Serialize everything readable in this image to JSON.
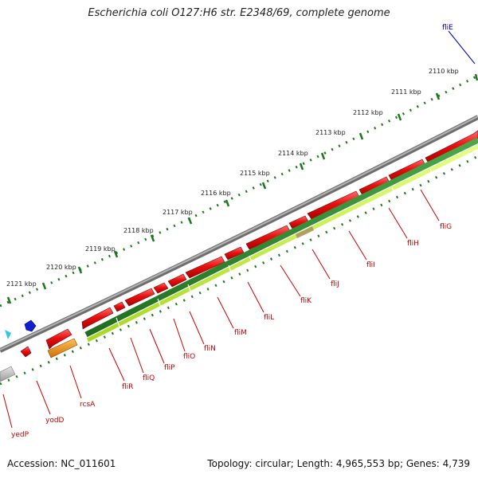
{
  "header": {
    "title": "Escherichia coli O127:H6 str. E2348/69, complete genome"
  },
  "footer": {
    "accession": "Accession: NC_011601",
    "topology": "Topology: circular; Length: 4,965,553 bp; Genes: 4,739"
  },
  "colors": {
    "background": "#ffffff",
    "backbone": "#8a8a8a",
    "gene_red": "#e81010",
    "gene_red_dark": "#a80000",
    "green_track": "#2e8b2e",
    "green_light": "#c8f040",
    "tick_green": "#1a7a1a",
    "label_red": "#cc0000",
    "label_blue": "#0000cc",
    "orange": "#f08c00",
    "gray_feature": "#c0c0c0",
    "blue_marker": "#1020d0",
    "cyan_marker": "#30c8e0"
  },
  "scale": {
    "ticks": [
      {
        "label": "2110 kbp"
      },
      {
        "label": "2111 kbp"
      },
      {
        "label": "2112 kbp"
      },
      {
        "label": "2113 kbp"
      },
      {
        "label": "2114 kbp"
      },
      {
        "label": "2115 kbp"
      },
      {
        "label": "2116 kbp"
      },
      {
        "label": "2117 kbp"
      },
      {
        "label": "2118 kbp"
      },
      {
        "label": "2119 kbp"
      },
      {
        "label": "2120 kbp"
      },
      {
        "label": "2121 kbp"
      }
    ]
  },
  "genes": [
    {
      "name": "fliE",
      "color": "blue"
    },
    {
      "name": "fliG",
      "color": "red"
    },
    {
      "name": "fliH",
      "color": "red"
    },
    {
      "name": "fliI",
      "color": "red"
    },
    {
      "name": "fliJ",
      "color": "red"
    },
    {
      "name": "fliK",
      "color": "red"
    },
    {
      "name": "fliL",
      "color": "red"
    },
    {
      "name": "fliM",
      "color": "red"
    },
    {
      "name": "fliN",
      "color": "red"
    },
    {
      "name": "fliO",
      "color": "red"
    },
    {
      "name": "fliP",
      "color": "red"
    },
    {
      "name": "fliQ",
      "color": "red"
    },
    {
      "name": "fliR",
      "color": "red"
    },
    {
      "name": "rcsA",
      "color": "red"
    },
    {
      "name": "yodD",
      "color": "red"
    },
    {
      "name": "yedP",
      "color": "red"
    }
  ]
}
